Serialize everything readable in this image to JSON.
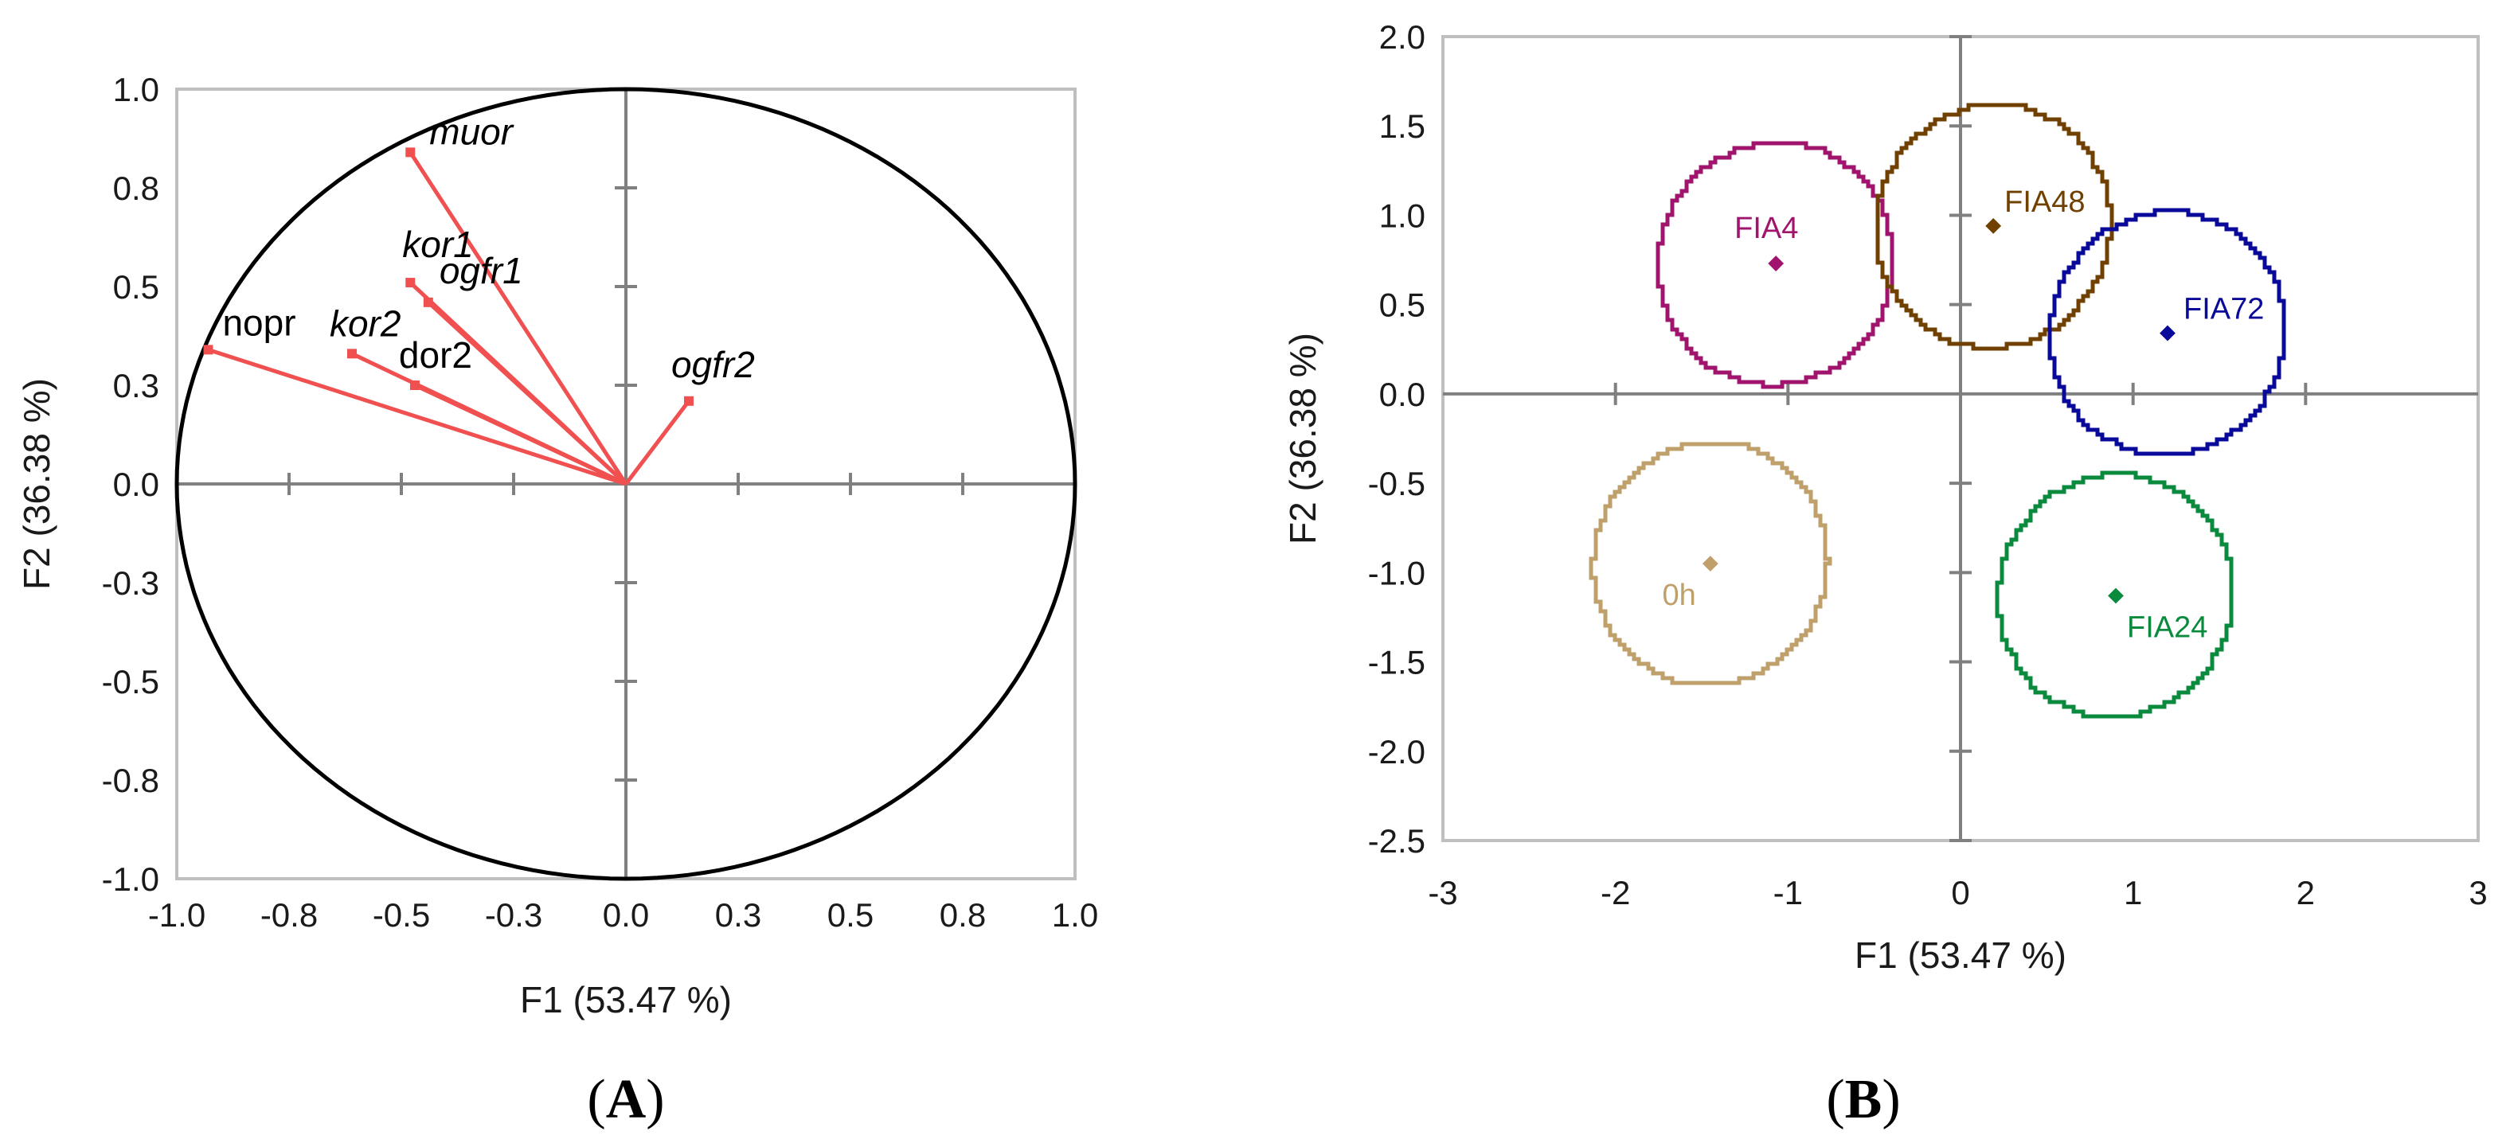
{
  "chart_data": [
    {
      "type": "scatter",
      "title": "",
      "panel_label": "A",
      "xlabel": "F1 (53.47 %)",
      "ylabel": "F2 (36.38 %)",
      "xlim": [
        -1.0,
        1.0
      ],
      "ylim": [
        -1.0,
        1.0
      ],
      "xticks": [
        -1.0,
        -0.75,
        -0.5,
        -0.25,
        0.0,
        0.25,
        0.5,
        0.75,
        1.0
      ],
      "yticks": [
        -1.0,
        -0.75,
        -0.5,
        -0.25,
        0.0,
        0.25,
        0.5,
        0.75,
        1.0
      ],
      "xtick_labels": [
        "-1.0",
        "-0.8",
        "-0.5",
        "-0.3",
        "0.0",
        "0.3",
        "0.5",
        "0.8",
        "1.0"
      ],
      "ytick_labels": [
        "-1.0",
        "-0.8",
        "-0.5",
        "-0.3",
        "0.0",
        "0.3",
        "0.5",
        "0.8",
        "1.0"
      ],
      "correlation_circle": true,
      "vectors": [
        {
          "name": "muor",
          "x": -0.48,
          "y": 0.84,
          "italic": true
        },
        {
          "name": "kor1",
          "x": -0.48,
          "y": 0.51,
          "italic": true
        },
        {
          "name": "ogfr1",
          "x": -0.44,
          "y": 0.46,
          "italic": true
        },
        {
          "name": "nopr",
          "x": -0.93,
          "y": 0.34,
          "italic": false
        },
        {
          "name": "kor2",
          "x": -0.61,
          "y": 0.33,
          "italic": true
        },
        {
          "name": "dor2",
          "x": -0.47,
          "y": 0.25,
          "italic": false
        },
        {
          "name": "ogfr2",
          "x": 0.14,
          "y": 0.21,
          "italic": true
        }
      ],
      "vector_color": "#f05050"
    },
    {
      "type": "scatter",
      "title": "",
      "panel_label": "B",
      "xlabel": "F1 (53.47 %)",
      "ylabel": "F2 (36.38 %)",
      "xlim": [
        -3,
        3
      ],
      "ylim": [
        -2.5,
        2.0
      ],
      "xticks": [
        -3,
        -2,
        -1,
        0,
        1,
        2,
        3
      ],
      "yticks": [
        -2.5,
        -2.0,
        -1.5,
        -1.0,
        -0.5,
        0.0,
        0.5,
        1.0,
        1.5,
        2.0
      ],
      "xtick_labels": [
        "-3",
        "-2",
        "-1",
        "0",
        "1",
        "2",
        "3"
      ],
      "ytick_labels": [
        "-2.5",
        "-2.0",
        "-1.5",
        "-1.0",
        "-0.5",
        "0.0",
        "0.5",
        "1.0",
        "1.5",
        "2.0"
      ],
      "groups": [
        {
          "name": "FIA4",
          "x": -1.07,
          "y": 0.73,
          "radius": 0.68,
          "color": "#a0146e"
        },
        {
          "name": "FIA48",
          "x": 0.19,
          "y": 0.94,
          "radius": 0.68,
          "color": "#704000"
        },
        {
          "name": "FIA72",
          "x": 1.2,
          "y": 0.34,
          "radius": 0.68,
          "color": "#0a0a9a"
        },
        {
          "name": "0h",
          "x": -1.45,
          "y": -0.95,
          "radius": 0.68,
          "color": "#bf9f6a"
        },
        {
          "name": "FIA24",
          "x": 0.9,
          "y": -1.13,
          "radius": 0.68,
          "color": "#0a8a3c"
        }
      ]
    }
  ]
}
